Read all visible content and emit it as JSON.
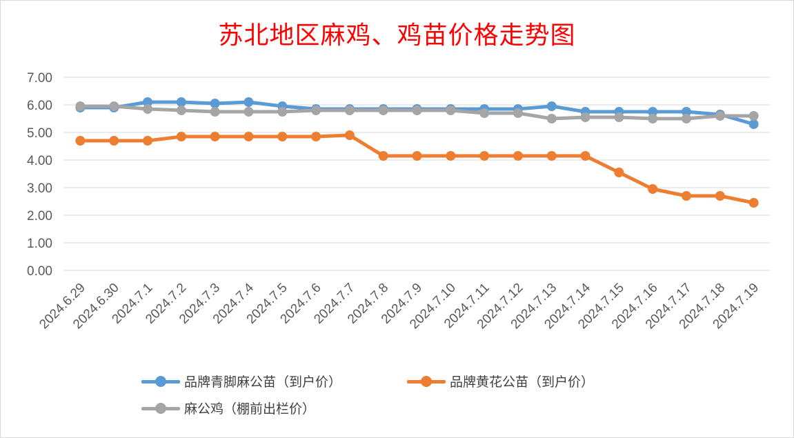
{
  "chart_data": {
    "type": "line",
    "title": "苏北地区麻鸡、鸡苗价格走势图",
    "categories": [
      "2024.6.29",
      "2024.6.30",
      "2024.7.1",
      "2024.7.2",
      "2024.7.3",
      "2024.7.4",
      "2024.7.5",
      "2024.7.6",
      "2024.7.7",
      "2024.7.8",
      "2024.7.9",
      "2024.7.10",
      "2024.7.11",
      "2024.7.12",
      "2024.7.13",
      "2024.7.14",
      "2024.7.15",
      "2024.7.16",
      "2024.7.17",
      "2024.7.18",
      "2024.7.19"
    ],
    "y_ticks": [
      "7.00",
      "6.00",
      "5.00",
      "4.00",
      "3.00",
      "2.00",
      "1.00",
      "0.00"
    ],
    "ylim": [
      0,
      7
    ],
    "grid": true,
    "legend_position": "bottom",
    "series": [
      {
        "name": "品牌青脚麻公苗（到户价）",
        "color": "#5b9bd5",
        "values": [
          5.9,
          5.9,
          6.1,
          6.1,
          6.05,
          6.1,
          5.95,
          5.85,
          5.85,
          5.85,
          5.85,
          5.85,
          5.85,
          5.85,
          5.95,
          5.75,
          5.75,
          5.75,
          5.75,
          5.65,
          5.3
        ]
      },
      {
        "name": "品牌黄花公苗（到户价）",
        "color": "#ed7d31",
        "values": [
          4.7,
          4.7,
          4.7,
          4.85,
          4.85,
          4.85,
          4.85,
          4.85,
          4.9,
          4.15,
          4.15,
          4.15,
          4.15,
          4.15,
          4.15,
          4.15,
          3.55,
          2.95,
          2.7,
          2.7,
          2.45
        ]
      },
      {
        "name": "麻公鸡（棚前出栏价）",
        "color": "#a5a5a5",
        "values": [
          5.95,
          5.95,
          5.85,
          5.8,
          5.75,
          5.75,
          5.75,
          5.8,
          5.8,
          5.8,
          5.8,
          5.8,
          5.7,
          5.7,
          5.5,
          5.55,
          5.55,
          5.5,
          5.5,
          5.6,
          5.6
        ]
      }
    ]
  }
}
